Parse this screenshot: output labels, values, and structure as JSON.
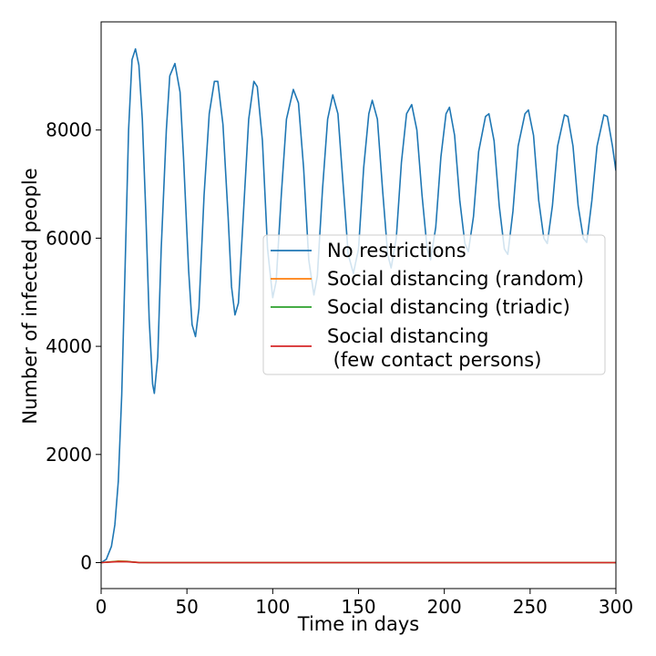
{
  "chart_data": {
    "type": "line",
    "title": "",
    "xlabel": "Time in days",
    "ylabel": "Number of infected people",
    "xlim": [
      0,
      300
    ],
    "ylim": [
      -480,
      10000
    ],
    "xticks": [
      0,
      50,
      100,
      150,
      200,
      250,
      300
    ],
    "yticks": [
      0,
      2000,
      4000,
      6000,
      8000
    ],
    "grid": false,
    "legend_position": "center-right",
    "series": [
      {
        "name": "No restrictions",
        "color": "#1f77b4",
        "points": [
          [
            0,
            0
          ],
          [
            3,
            60
          ],
          [
            6,
            300
          ],
          [
            8,
            700
          ],
          [
            10,
            1500
          ],
          [
            12,
            3100
          ],
          [
            14,
            5500
          ],
          [
            16,
            8000
          ],
          [
            18,
            9300
          ],
          [
            20,
            9500
          ],
          [
            22,
            9200
          ],
          [
            24,
            8200
          ],
          [
            26,
            6500
          ],
          [
            28,
            4500
          ],
          [
            30,
            3300
          ],
          [
            31,
            3130
          ],
          [
            33,
            3800
          ],
          [
            35,
            5800
          ],
          [
            38,
            8000
          ],
          [
            40,
            9000
          ],
          [
            43,
            9230
          ],
          [
            46,
            8700
          ],
          [
            48,
            7500
          ],
          [
            51,
            5400
          ],
          [
            53,
            4400
          ],
          [
            55,
            4180
          ],
          [
            57,
            4700
          ],
          [
            60,
            6800
          ],
          [
            63,
            8300
          ],
          [
            66,
            8900
          ],
          [
            68,
            8900
          ],
          [
            71,
            8100
          ],
          [
            74,
            6400
          ],
          [
            76,
            5100
          ],
          [
            78,
            4580
          ],
          [
            80,
            4800
          ],
          [
            83,
            6500
          ],
          [
            86,
            8200
          ],
          [
            89,
            8900
          ],
          [
            91,
            8800
          ],
          [
            94,
            7800
          ],
          [
            97,
            5800
          ],
          [
            100,
            4900
          ],
          [
            102,
            5200
          ],
          [
            105,
            6800
          ],
          [
            108,
            8200
          ],
          [
            112,
            8750
          ],
          [
            115,
            8500
          ],
          [
            118,
            7300
          ],
          [
            121,
            5600
          ],
          [
            124,
            4950
          ],
          [
            126,
            5300
          ],
          [
            129,
            6900
          ],
          [
            132,
            8200
          ],
          [
            135,
            8650
          ],
          [
            138,
            8300
          ],
          [
            141,
            7000
          ],
          [
            144,
            5700
          ],
          [
            147,
            5350
          ],
          [
            150,
            5800
          ],
          [
            153,
            7300
          ],
          [
            156,
            8300
          ],
          [
            158,
            8550
          ],
          [
            161,
            8200
          ],
          [
            164,
            6900
          ],
          [
            167,
            5700
          ],
          [
            169,
            5450
          ],
          [
            172,
            6000
          ],
          [
            175,
            7400
          ],
          [
            178,
            8300
          ],
          [
            181,
            8470
          ],
          [
            184,
            8000
          ],
          [
            187,
            6800
          ],
          [
            190,
            5800
          ],
          [
            192,
            5600
          ],
          [
            195,
            6200
          ],
          [
            198,
            7500
          ],
          [
            201,
            8300
          ],
          [
            203,
            8420
          ],
          [
            206,
            7900
          ],
          [
            209,
            6700
          ],
          [
            212,
            5900
          ],
          [
            214,
            5750
          ],
          [
            217,
            6400
          ],
          [
            220,
            7600
          ],
          [
            224,
            8250
          ],
          [
            226,
            8300
          ],
          [
            229,
            7800
          ],
          [
            232,
            6600
          ],
          [
            235,
            5800
          ],
          [
            237,
            5700
          ],
          [
            240,
            6500
          ],
          [
            243,
            7700
          ],
          [
            247,
            8300
          ],
          [
            249,
            8370
          ],
          [
            252,
            7900
          ],
          [
            255,
            6700
          ],
          [
            258,
            6000
          ],
          [
            260,
            5900
          ],
          [
            263,
            6600
          ],
          [
            266,
            7700
          ],
          [
            270,
            8280
          ],
          [
            272,
            8250
          ],
          [
            275,
            7700
          ],
          [
            278,
            6600
          ],
          [
            281,
            6000
          ],
          [
            283,
            5920
          ],
          [
            286,
            6700
          ],
          [
            289,
            7700
          ],
          [
            293,
            8280
          ],
          [
            295,
            8250
          ],
          [
            298,
            7700
          ],
          [
            300,
            7250
          ]
        ]
      },
      {
        "name": "Social distancing (random)",
        "color": "#ff7f0e",
        "points": [
          [
            0,
            0
          ],
          [
            5,
            15
          ],
          [
            10,
            28
          ],
          [
            15,
            25
          ],
          [
            18,
            15
          ],
          [
            22,
            3
          ],
          [
            30,
            0
          ],
          [
            300,
            0
          ]
        ]
      },
      {
        "name": "Social distancing (triadic)",
        "color": "#2ca02c",
        "points": [
          [
            0,
            0
          ],
          [
            5,
            12
          ],
          [
            10,
            22
          ],
          [
            15,
            20
          ],
          [
            18,
            12
          ],
          [
            22,
            2
          ],
          [
            30,
            0
          ],
          [
            300,
            0
          ]
        ]
      },
      {
        "name": "Social distancing\n (few contact persons)",
        "color": "#d62728",
        "points": [
          [
            0,
            0
          ],
          [
            5,
            10
          ],
          [
            10,
            18
          ],
          [
            15,
            16
          ],
          [
            19,
            8
          ],
          [
            22,
            1
          ],
          [
            30,
            0
          ],
          [
            300,
            0
          ]
        ]
      }
    ]
  }
}
